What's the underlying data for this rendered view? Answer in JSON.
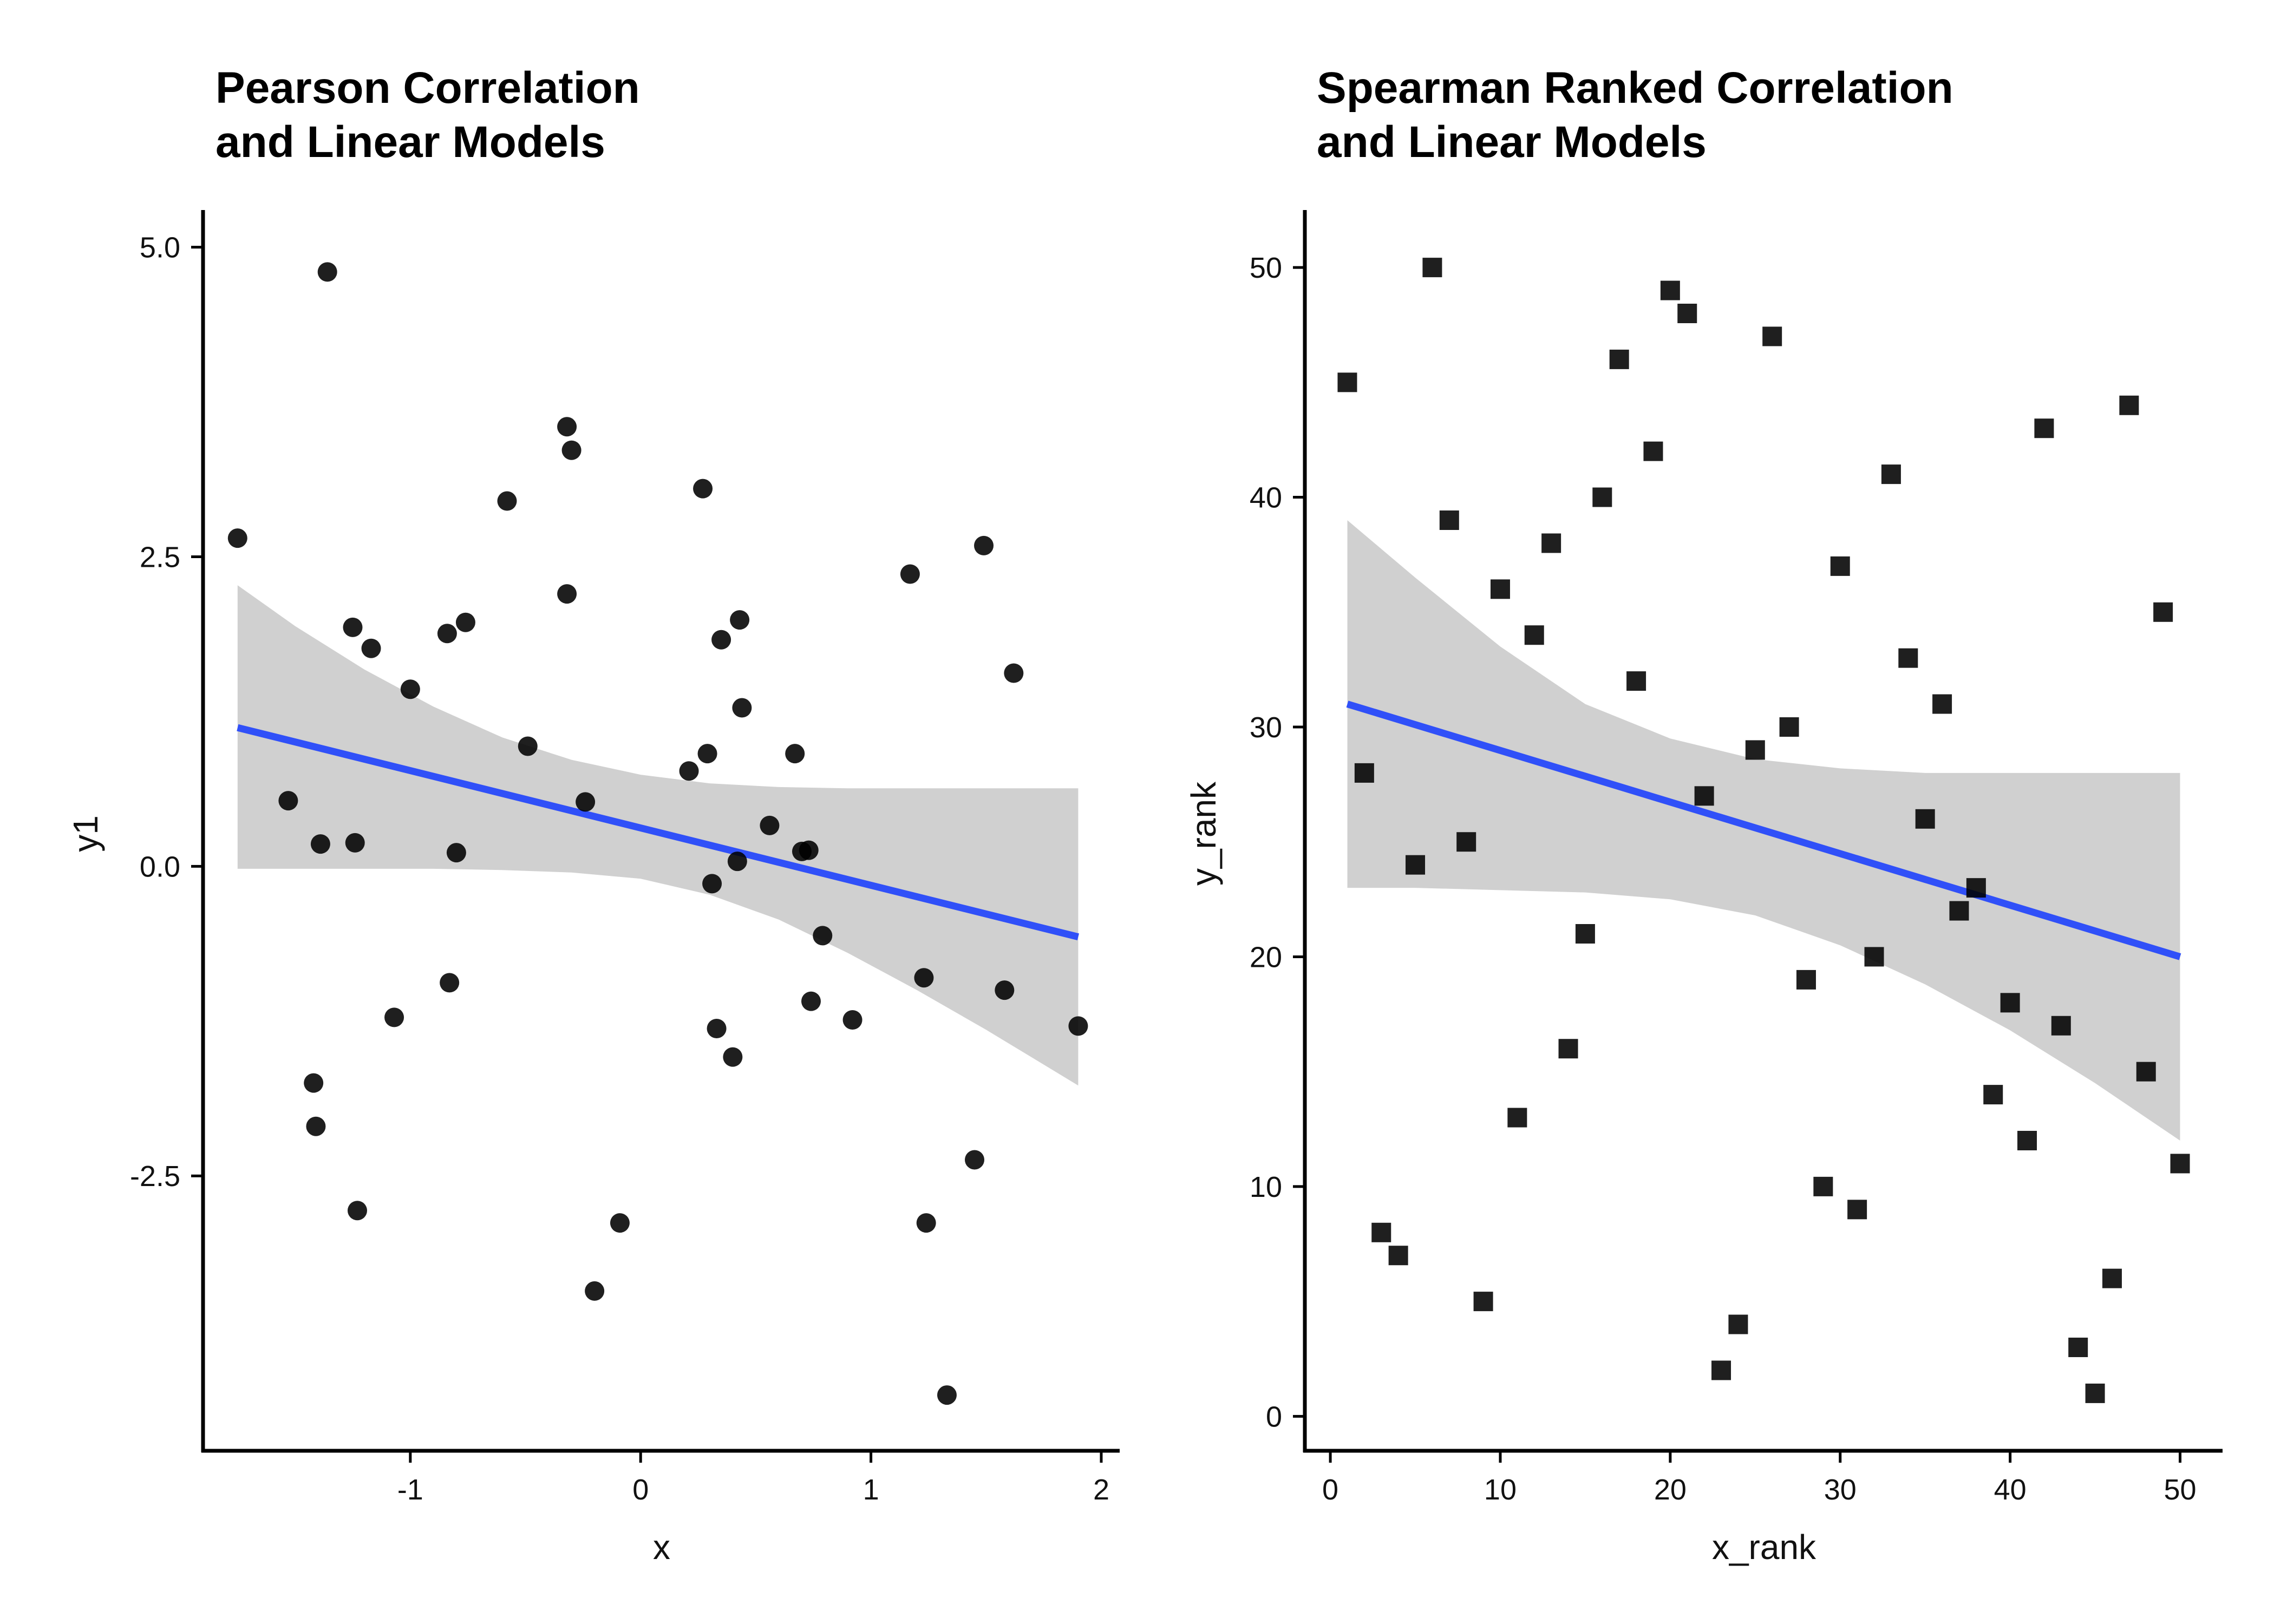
{
  "chart_data": [
    {
      "type": "scatter",
      "title": "Pearson Correlation\nand Linear Models",
      "xlabel": "x",
      "ylabel": "y1",
      "xlim": [
        -1.9,
        2.08
      ],
      "ylim": [
        -4.72,
        5.3
      ],
      "xticks": [
        -1,
        0,
        1,
        2
      ],
      "xtick_labels": [
        "-1",
        "0",
        "1",
        "2"
      ],
      "yticks": [
        -2.5,
        0.0,
        2.5,
        5.0
      ],
      "ytick_labels": [
        "-2.5",
        "0.0",
        "2.5",
        "5.0"
      ],
      "marker": "circle",
      "grid": false,
      "legend": "none",
      "points": [
        {
          "x": -1.75,
          "y": 2.65
        },
        {
          "x": -1.53,
          "y": 0.53
        },
        {
          "x": -1.42,
          "y": -1.75
        },
        {
          "x": -1.41,
          "y": -2.1
        },
        {
          "x": -1.39,
          "y": 0.18
        },
        {
          "x": -1.36,
          "y": 4.8
        },
        {
          "x": -1.25,
          "y": 1.93
        },
        {
          "x": -1.24,
          "y": 0.19
        },
        {
          "x": -1.23,
          "y": -2.78
        },
        {
          "x": -1.17,
          "y": 1.76
        },
        {
          "x": -1.07,
          "y": -1.22
        },
        {
          "x": -1.0,
          "y": 1.43
        },
        {
          "x": -0.84,
          "y": 1.88
        },
        {
          "x": -0.83,
          "y": -0.94
        },
        {
          "x": -0.8,
          "y": 0.11
        },
        {
          "x": -0.76,
          "y": 1.97
        },
        {
          "x": -0.58,
          "y": 2.95
        },
        {
          "x": -0.49,
          "y": 0.97
        },
        {
          "x": -0.32,
          "y": 3.55
        },
        {
          "x": -0.32,
          "y": 2.2
        },
        {
          "x": -0.3,
          "y": 3.36
        },
        {
          "x": -0.24,
          "y": 0.52
        },
        {
          "x": -0.2,
          "y": -3.43
        },
        {
          "x": -0.09,
          "y": -2.88
        },
        {
          "x": 0.21,
          "y": 0.77
        },
        {
          "x": 0.27,
          "y": 3.05
        },
        {
          "x": 0.29,
          "y": 0.91
        },
        {
          "x": 0.31,
          "y": -0.14
        },
        {
          "x": 0.33,
          "y": -1.31
        },
        {
          "x": 0.35,
          "y": 1.83
        },
        {
          "x": 0.4,
          "y": -1.54
        },
        {
          "x": 0.42,
          "y": 0.04
        },
        {
          "x": 0.43,
          "y": 1.99
        },
        {
          "x": 0.44,
          "y": 1.28
        },
        {
          "x": 0.56,
          "y": 0.33
        },
        {
          "x": 0.67,
          "y": 0.91
        },
        {
          "x": 0.7,
          "y": 0.12
        },
        {
          "x": 0.73,
          "y": 0.13
        },
        {
          "x": 0.74,
          "y": -1.09
        },
        {
          "x": 0.79,
          "y": -0.56
        },
        {
          "x": 0.92,
          "y": -1.24
        },
        {
          "x": 1.17,
          "y": 2.36
        },
        {
          "x": 1.23,
          "y": -0.9
        },
        {
          "x": 1.24,
          "y": -2.88
        },
        {
          "x": 1.33,
          "y": -4.27
        },
        {
          "x": 1.45,
          "y": -2.37
        },
        {
          "x": 1.49,
          "y": 2.59
        },
        {
          "x": 1.58,
          "y": -1.0
        },
        {
          "x": 1.62,
          "y": 1.56
        },
        {
          "x": 1.9,
          "y": -1.29
        }
      ],
      "fit_line": {
        "x": [
          -1.75,
          1.9
        ],
        "y": [
          1.12,
          -0.57
        ],
        "color": "#3050F8"
      },
      "confidence_band": {
        "x": [
          -1.75,
          -1.5,
          -1.2,
          -0.9,
          -0.6,
          -0.3,
          0.0,
          0.3,
          0.6,
          0.9,
          1.2,
          1.5,
          1.9
        ],
        "upper": [
          2.27,
          1.94,
          1.59,
          1.29,
          1.04,
          0.86,
          0.74,
          0.67,
          0.64,
          0.63,
          0.63,
          0.63,
          0.63
        ],
        "lower": [
          -0.02,
          -0.02,
          -0.02,
          -0.02,
          -0.03,
          -0.05,
          -0.1,
          -0.23,
          -0.43,
          -0.7,
          -1.0,
          -1.32,
          -1.77
        ],
        "color": "#D0D0D0"
      }
    },
    {
      "type": "scatter",
      "title": "Spearman Ranked Correlation\nand Linear Models",
      "xlabel": "x_rank",
      "ylabel": "y_rank",
      "xlim": [
        -1.5,
        52.5
      ],
      "ylim": [
        -1.5,
        52.5
      ],
      "xticks": [
        0,
        10,
        20,
        30,
        40,
        50
      ],
      "xtick_labels": [
        "0",
        "10",
        "20",
        "30",
        "40",
        "50"
      ],
      "yticks": [
        0,
        10,
        20,
        30,
        40,
        50
      ],
      "ytick_labels": [
        "0",
        "10",
        "20",
        "30",
        "40",
        "50"
      ],
      "marker": "square",
      "grid": false,
      "legend": "none",
      "points": [
        {
          "x": 1,
          "y": 45
        },
        {
          "x": 2,
          "y": 28
        },
        {
          "x": 3,
          "y": 8
        },
        {
          "x": 4,
          "y": 7
        },
        {
          "x": 5,
          "y": 24
        },
        {
          "x": 6,
          "y": 50
        },
        {
          "x": 7,
          "y": 39
        },
        {
          "x": 8,
          "y": 25
        },
        {
          "x": 9,
          "y": 5
        },
        {
          "x": 10,
          "y": 36
        },
        {
          "x": 11,
          "y": 13
        },
        {
          "x": 12,
          "y": 34
        },
        {
          "x": 13,
          "y": 38
        },
        {
          "x": 14,
          "y": 16
        },
        {
          "x": 15,
          "y": 21
        },
        {
          "x": 16,
          "y": 40
        },
        {
          "x": 17,
          "y": 46
        },
        {
          "x": 18,
          "y": 32
        },
        {
          "x": 19,
          "y": 42
        },
        {
          "x": 20,
          "y": 49
        },
        {
          "x": 21,
          "y": 48
        },
        {
          "x": 22,
          "y": 27
        },
        {
          "x": 23,
          "y": 2
        },
        {
          "x": 24,
          "y": 4
        },
        {
          "x": 25,
          "y": 29
        },
        {
          "x": 26,
          "y": 47
        },
        {
          "x": 27,
          "y": 30
        },
        {
          "x": 28,
          "y": 19
        },
        {
          "x": 29,
          "y": 10
        },
        {
          "x": 30,
          "y": 37
        },
        {
          "x": 31,
          "y": 9
        },
        {
          "x": 32,
          "y": 20
        },
        {
          "x": 33,
          "y": 41
        },
        {
          "x": 34,
          "y": 33
        },
        {
          "x": 35,
          "y": 26
        },
        {
          "x": 36,
          "y": 31
        },
        {
          "x": 37,
          "y": 22
        },
        {
          "x": 38,
          "y": 23
        },
        {
          "x": 39,
          "y": 14
        },
        {
          "x": 40,
          "y": 18
        },
        {
          "x": 41,
          "y": 12
        },
        {
          "x": 42,
          "y": 43
        },
        {
          "x": 43,
          "y": 17
        },
        {
          "x": 44,
          "y": 3
        },
        {
          "x": 45,
          "y": 1
        },
        {
          "x": 46,
          "y": 6
        },
        {
          "x": 47,
          "y": 44
        },
        {
          "x": 48,
          "y": 15
        },
        {
          "x": 49,
          "y": 35
        },
        {
          "x": 50,
          "y": 11
        }
      ],
      "fit_line": {
        "x": [
          1,
          50
        ],
        "y": [
          31.0,
          20.0
        ],
        "color": "#3050F8"
      },
      "confidence_band": {
        "x": [
          1,
          5,
          10,
          15,
          20,
          25,
          30,
          35,
          40,
          45,
          50
        ],
        "upper": [
          39.0,
          36.5,
          33.5,
          31.0,
          29.5,
          28.6,
          28.2,
          28.0,
          28.0,
          28.0,
          28.0
        ],
        "lower": [
          23.0,
          23.0,
          22.9,
          22.8,
          22.5,
          21.8,
          20.5,
          18.8,
          16.8,
          14.5,
          12.0
        ],
        "color": "#D0D0D0"
      }
    }
  ]
}
